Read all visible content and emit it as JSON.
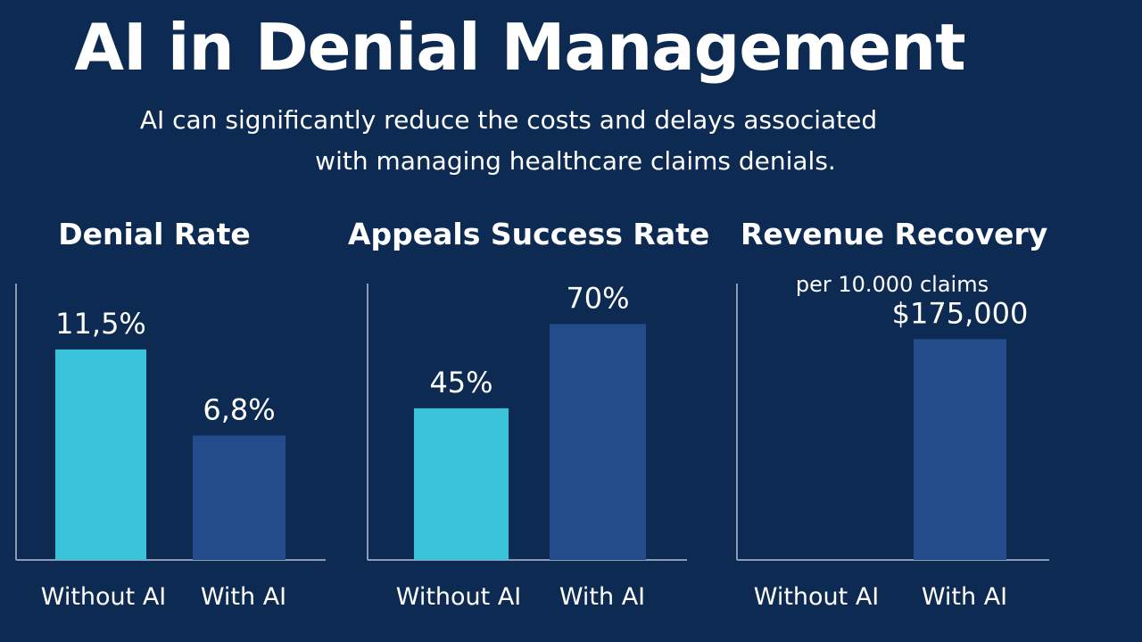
{
  "header": {
    "title": "AI in Denial Management",
    "subtitle_line1": "AI can significantly reduce the costs and delays associated",
    "subtitle_line2": "with managing healthcare claims denials."
  },
  "colors": {
    "background": "#0c2a52",
    "without_ai": "#3ac3d9",
    "with_ai": "#244b8a",
    "axis": "#8a9bb3"
  },
  "chart_data": [
    {
      "type": "bar",
      "title": "Denial Rate",
      "subtitle": "",
      "categories": [
        "Without AI",
        "With AI"
      ],
      "values": [
        11.5,
        6.8
      ],
      "value_labels": [
        "11,5%",
        "6,8%"
      ],
      "ylim": [
        0,
        15.1
      ]
    },
    {
      "type": "bar",
      "title": "Appeals Success Rate",
      "subtitle": "",
      "categories": [
        "Without AI",
        "With AI"
      ],
      "values": [
        45,
        70
      ],
      "value_labels": [
        "45%",
        "70%"
      ],
      "ylim": [
        0,
        82
      ]
    },
    {
      "type": "bar",
      "title": "Revenue Recovery",
      "subtitle": "per 10.000 claims",
      "categories": [
        "Without AI",
        "With AI"
      ],
      "values": [
        null,
        175000
      ],
      "value_labels": [
        "",
        "$175,000"
      ],
      "ylim": [
        0,
        219000
      ]
    }
  ]
}
